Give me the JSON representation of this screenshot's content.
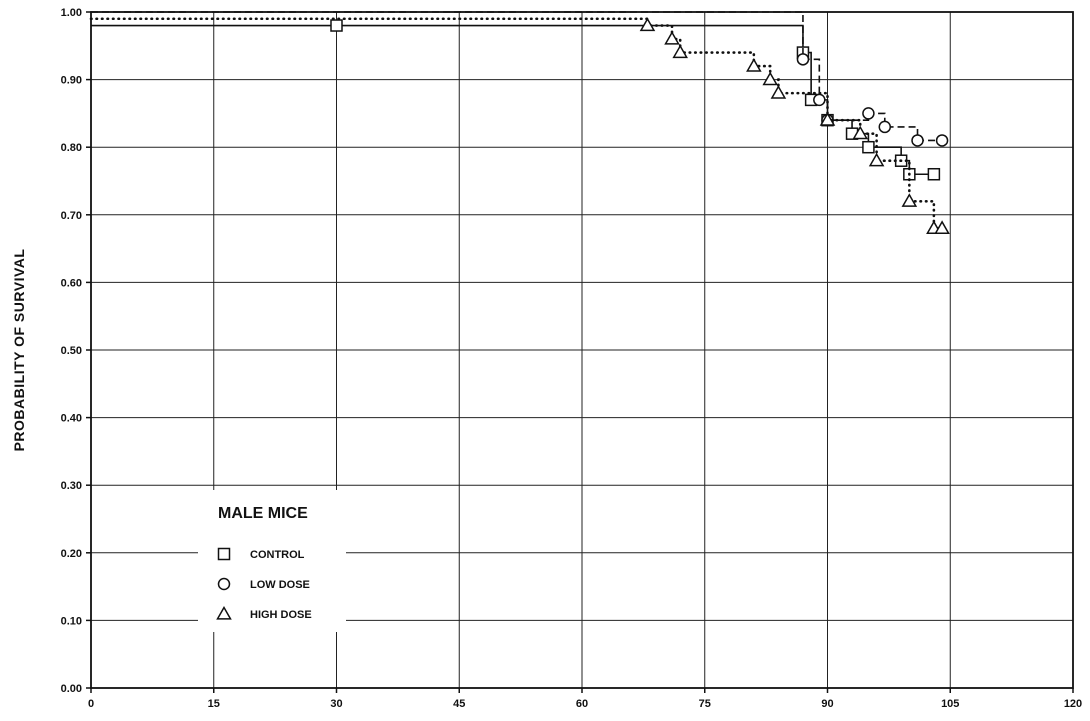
{
  "chart_data": {
    "type": "line",
    "title": "",
    "xlabel": "",
    "ylabel": "PROBABILITY OF SURVIVAL",
    "xlim": [
      0,
      120
    ],
    "ylim": [
      0.0,
      1.0
    ],
    "x_ticks": [
      "0",
      "15",
      "30",
      "45",
      "60",
      "75",
      "90",
      "105",
      "120"
    ],
    "y_ticks": [
      "0.00",
      "0.10",
      "0.20",
      "0.30",
      "0.40",
      "0.50",
      "0.60",
      "0.70",
      "0.80",
      "0.90",
      "1.00"
    ],
    "grid": true,
    "legend": {
      "title": "MALE MICE",
      "placement": "lower-left",
      "entries": [
        "CONTROL",
        "LOW DOSE",
        "HIGH DOSE"
      ]
    },
    "series": [
      {
        "name": "CONTROL",
        "line_style": "solid",
        "marker": "square",
        "x": [
          0,
          30,
          87,
          88,
          90,
          93,
          95,
          99,
          100,
          103
        ],
        "y": [
          0.98,
          0.98,
          0.94,
          0.87,
          0.84,
          0.82,
          0.8,
          0.78,
          0.76,
          0.76
        ]
      },
      {
        "name": "LOW DOSE",
        "line_style": "dashed",
        "marker": "circle",
        "x": [
          0,
          87,
          89,
          90,
          95,
          97,
          101,
          104
        ],
        "y": [
          1.0,
          0.93,
          0.87,
          0.84,
          0.85,
          0.83,
          0.81,
          0.81
        ]
      },
      {
        "name": "HIGH DOSE",
        "line_style": "dotted",
        "marker": "triangle",
        "x": [
          0,
          68,
          71,
          72,
          81,
          83,
          84,
          90,
          94,
          96,
          100,
          103,
          104
        ],
        "y": [
          0.99,
          0.98,
          0.96,
          0.94,
          0.92,
          0.9,
          0.88,
          0.84,
          0.82,
          0.78,
          0.72,
          0.68,
          0.68
        ]
      }
    ]
  }
}
